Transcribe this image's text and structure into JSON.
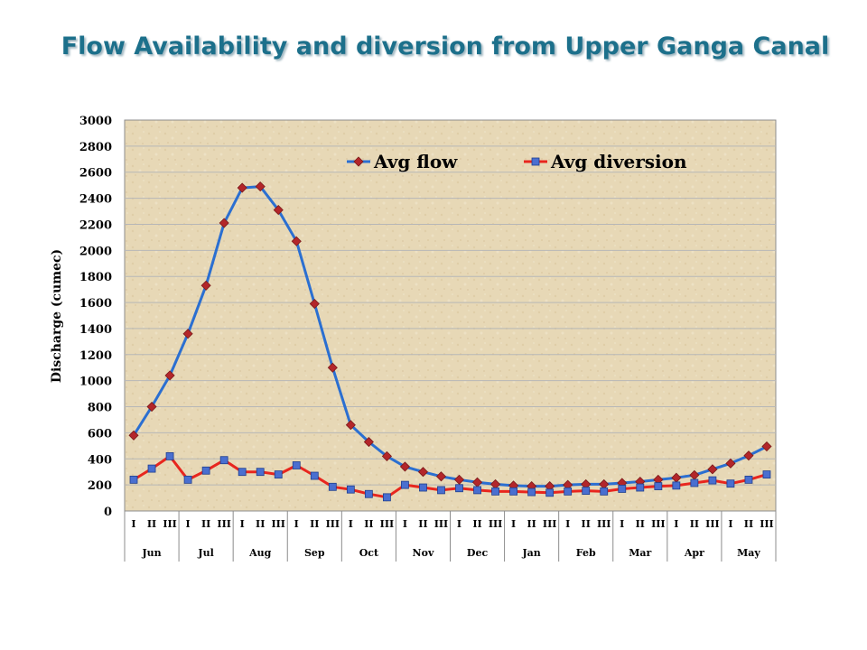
{
  "slide": {
    "title": "Flow Availability and diversion from Upper Ganga Canal"
  },
  "colors": {
    "title": "#1f6f8b",
    "avg_flow": "#2b6fd1",
    "avg_flow_marker": "#b3262a",
    "avg_diversion": "#e8261e",
    "avg_diversion_marker": "#4a6fd0",
    "plot_bg": "#e6d6b4",
    "grid": "#b7b7b7"
  },
  "chart_data": {
    "type": "line",
    "title": "",
    "xlabel": "",
    "ylabel": "Discharge (cumec)",
    "ylim": [
      0,
      3000
    ],
    "yticks": [
      0,
      200,
      400,
      600,
      800,
      1000,
      1200,
      1400,
      1600,
      1800,
      2000,
      2200,
      2400,
      2600,
      2800,
      3000
    ],
    "grid": true,
    "legend_position": "top",
    "months": [
      "Jun",
      "Jul",
      "Aug",
      "Sep",
      "Oct",
      "Nov",
      "Dec",
      "Jan",
      "Feb",
      "Mar",
      "Apr",
      "May"
    ],
    "subperiods": [
      "I",
      "II",
      "III"
    ],
    "series": [
      {
        "name": "Avg flow",
        "marker": "diamond",
        "values": [
          580,
          800,
          1040,
          1360,
          1730,
          2210,
          2480,
          2490,
          2310,
          2070,
          1590,
          1100,
          660,
          530,
          420,
          340,
          300,
          265,
          240,
          220,
          205,
          195,
          190,
          190,
          200,
          205,
          205,
          215,
          225,
          240,
          255,
          275,
          320,
          365,
          425,
          495
        ]
      },
      {
        "name": "Avg diversion",
        "marker": "square",
        "values": [
          240,
          325,
          420,
          240,
          310,
          390,
          300,
          300,
          280,
          350,
          270,
          185,
          165,
          130,
          105,
          200,
          180,
          160,
          175,
          160,
          150,
          150,
          145,
          140,
          150,
          155,
          150,
          170,
          180,
          190,
          195,
          215,
          235,
          210,
          240,
          280
        ]
      }
    ]
  }
}
